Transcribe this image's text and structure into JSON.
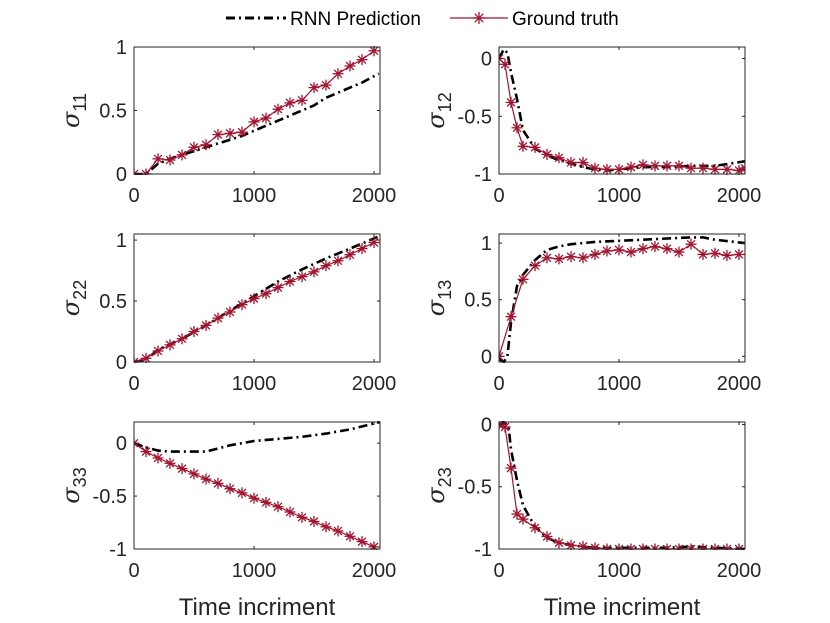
{
  "colors": {
    "rnn": "#000000",
    "truth": "#a2142f",
    "axis": "#262626"
  },
  "legend": {
    "rnn_label": "RNN Prediction",
    "truth_label": "Ground truth"
  },
  "chart_data": [
    {
      "type": "line",
      "panel": "sigma_11",
      "ylabel_symbol": "σ",
      "ylabel_sub": "11",
      "xlabel": "",
      "xlim": [
        0,
        2050
      ],
      "ylim": [
        0,
        1
      ],
      "xticks": [
        0,
        1000,
        2000
      ],
      "xtick_labels": [
        "0",
        "1000",
        "2000"
      ],
      "yticks": [
        0,
        0.5,
        1
      ],
      "ytick_labels": [
        "0",
        "0.5",
        "1"
      ],
      "series": [
        {
          "name": "RNN Prediction",
          "style": "dashdot",
          "x": [
            0,
            100,
            200,
            300,
            400,
            500,
            600,
            700,
            800,
            900,
            1000,
            1100,
            1200,
            1300,
            1400,
            1500,
            1600,
            1700,
            1800,
            1900,
            2000,
            2040
          ],
          "y": [
            0.0,
            0.0,
            0.08,
            0.12,
            0.15,
            0.18,
            0.21,
            0.24,
            0.27,
            0.3,
            0.34,
            0.38,
            0.42,
            0.46,
            0.5,
            0.54,
            0.6,
            0.64,
            0.68,
            0.72,
            0.77,
            0.79
          ]
        },
        {
          "name": "Ground truth",
          "style": "solid-star",
          "x": [
            0,
            100,
            200,
            300,
            400,
            500,
            600,
            700,
            800,
            900,
            1000,
            1100,
            1200,
            1300,
            1400,
            1500,
            1600,
            1700,
            1800,
            1900,
            2000
          ],
          "y": [
            0.0,
            0.0,
            0.12,
            0.11,
            0.15,
            0.21,
            0.23,
            0.31,
            0.32,
            0.33,
            0.41,
            0.44,
            0.51,
            0.56,
            0.58,
            0.68,
            0.7,
            0.79,
            0.85,
            0.9,
            0.97
          ]
        }
      ]
    },
    {
      "type": "line",
      "panel": "sigma_12",
      "ylabel_symbol": "σ",
      "ylabel_sub": "12",
      "xlabel": "",
      "xlim": [
        0,
        2050
      ],
      "ylim": [
        -1,
        0.1
      ],
      "xticks": [
        0,
        1000,
        2000
      ],
      "xtick_labels": [
        "0",
        "1000",
        "2000"
      ],
      "yticks": [
        -1,
        -0.5,
        0
      ],
      "ytick_labels": [
        "-1",
        "-0.5",
        "0"
      ],
      "series": [
        {
          "name": "RNN Prediction",
          "style": "dashdot",
          "x": [
            0,
            40,
            70,
            100,
            150,
            200,
            300,
            400,
            500,
            600,
            700,
            800,
            900,
            1000,
            1200,
            1400,
            1600,
            1800,
            2050
          ],
          "y": [
            0.0,
            0.08,
            0.05,
            -0.12,
            -0.35,
            -0.62,
            -0.78,
            -0.84,
            -0.88,
            -0.91,
            -0.94,
            -0.96,
            -0.97,
            -0.96,
            -0.94,
            -0.94,
            -0.93,
            -0.93,
            -0.89
          ]
        },
        {
          "name": "Ground truth",
          "style": "solid-star",
          "x": [
            0,
            50,
            100,
            150,
            200,
            300,
            400,
            500,
            600,
            700,
            800,
            900,
            1000,
            1100,
            1200,
            1300,
            1400,
            1500,
            1600,
            1700,
            1800,
            1900,
            2000,
            2050
          ],
          "y": [
            0.0,
            -0.05,
            -0.38,
            -0.6,
            -0.76,
            -0.77,
            -0.83,
            -0.86,
            -0.9,
            -0.9,
            -0.95,
            -0.96,
            -0.96,
            -0.94,
            -0.92,
            -0.93,
            -0.93,
            -0.93,
            -0.95,
            -0.95,
            -0.96,
            -0.96,
            -0.97,
            -0.95
          ]
        }
      ]
    },
    {
      "type": "line",
      "panel": "sigma_22",
      "ylabel_symbol": "σ",
      "ylabel_sub": "22",
      "xlabel": "",
      "xlim": [
        0,
        2050
      ],
      "ylim": [
        0,
        1.05
      ],
      "xticks": [
        0,
        1000,
        2000
      ],
      "xtick_labels": [
        "0",
        "1000",
        "2000"
      ],
      "yticks": [
        0,
        0.5,
        1
      ],
      "ytick_labels": [
        "0",
        "0.5",
        "1"
      ],
      "series": [
        {
          "name": "RNN Prediction",
          "style": "dashdot",
          "x": [
            0,
            100,
            200,
            400,
            600,
            800,
            1000,
            1200,
            1400,
            1600,
            1800,
            2040
          ],
          "y": [
            0.0,
            0.02,
            0.1,
            0.19,
            0.3,
            0.42,
            0.54,
            0.66,
            0.76,
            0.85,
            0.93,
            1.03
          ]
        },
        {
          "name": "Ground truth",
          "style": "solid-star",
          "x": [
            0,
            100,
            200,
            300,
            400,
            500,
            600,
            700,
            800,
            900,
            1000,
            1100,
            1200,
            1300,
            1400,
            1500,
            1600,
            1700,
            1800,
            1900,
            2000
          ],
          "y": [
            0.0,
            0.03,
            0.09,
            0.14,
            0.19,
            0.25,
            0.3,
            0.36,
            0.41,
            0.47,
            0.52,
            0.56,
            0.61,
            0.66,
            0.7,
            0.74,
            0.79,
            0.83,
            0.88,
            0.93,
            0.98
          ]
        }
      ]
    },
    {
      "type": "line",
      "panel": "sigma_13",
      "ylabel_symbol": "σ",
      "ylabel_sub": "13",
      "xlabel": "",
      "xlim": [
        0,
        2050
      ],
      "ylim": [
        -0.05,
        1.08
      ],
      "xticks": [
        0,
        1000,
        2000
      ],
      "xtick_labels": [
        "0",
        "1000",
        "2000"
      ],
      "yticks": [
        0,
        0.5,
        1
      ],
      "ytick_labels": [
        "0",
        "0.5",
        "1"
      ],
      "series": [
        {
          "name": "RNN Prediction",
          "style": "dashdot",
          "x": [
            0,
            40,
            70,
            100,
            150,
            200,
            300,
            400,
            500,
            600,
            800,
            1000,
            1200,
            1400,
            1600,
            1700,
            1800,
            2050
          ],
          "y": [
            -0.02,
            -0.05,
            0.0,
            0.3,
            0.62,
            0.72,
            0.85,
            0.94,
            0.97,
            0.99,
            1.01,
            1.02,
            1.03,
            1.04,
            1.05,
            1.05,
            1.03,
            1.0
          ]
        },
        {
          "name": "Ground truth",
          "style": "solid-star",
          "x": [
            0,
            100,
            200,
            300,
            400,
            500,
            600,
            700,
            800,
            900,
            1000,
            1100,
            1200,
            1300,
            1400,
            1500,
            1600,
            1700,
            1800,
            1900,
            2000
          ],
          "y": [
            0.0,
            0.35,
            0.68,
            0.8,
            0.87,
            0.86,
            0.88,
            0.87,
            0.9,
            0.93,
            0.94,
            0.92,
            0.95,
            0.97,
            0.95,
            0.92,
            0.99,
            0.9,
            0.91,
            0.89,
            0.9
          ]
        }
      ]
    },
    {
      "type": "line",
      "panel": "sigma_33",
      "ylabel_symbol": "σ",
      "ylabel_sub": "33",
      "xlabel": "Time incriment",
      "xlim": [
        0,
        2050
      ],
      "ylim": [
        -1,
        0.2
      ],
      "xticks": [
        0,
        1000,
        2000
      ],
      "xtick_labels": [
        "0",
        "1000",
        "2000"
      ],
      "yticks": [
        -1,
        -0.5,
        0
      ],
      "ytick_labels": [
        "-1",
        "-0.5",
        "0"
      ],
      "series": [
        {
          "name": "RNN Prediction",
          "style": "dashdot",
          "x": [
            0,
            100,
            200,
            300,
            400,
            500,
            600,
            700,
            800,
            900,
            1000,
            1200,
            1400,
            1600,
            1800,
            2050
          ],
          "y": [
            0.0,
            -0.04,
            -0.07,
            -0.08,
            -0.08,
            -0.08,
            -0.08,
            -0.05,
            -0.02,
            0.0,
            0.02,
            0.04,
            0.06,
            0.09,
            0.13,
            0.2
          ]
        },
        {
          "name": "Ground truth",
          "style": "solid-star",
          "x": [
            0,
            100,
            200,
            300,
            400,
            500,
            600,
            700,
            800,
            900,
            1000,
            1100,
            1200,
            1300,
            1400,
            1500,
            1600,
            1700,
            1800,
            1900,
            2000
          ],
          "y": [
            0.0,
            -0.08,
            -0.14,
            -0.19,
            -0.24,
            -0.29,
            -0.34,
            -0.38,
            -0.43,
            -0.47,
            -0.52,
            -0.56,
            -0.6,
            -0.65,
            -0.7,
            -0.74,
            -0.79,
            -0.83,
            -0.88,
            -0.93,
            -0.98
          ]
        }
      ]
    },
    {
      "type": "line",
      "panel": "sigma_23",
      "ylabel_symbol": "σ",
      "ylabel_sub": "23",
      "xlabel": "Time incriment",
      "xlim": [
        0,
        2050
      ],
      "ylim": [
        -1,
        0.02
      ],
      "xticks": [
        0,
        1000,
        2000
      ],
      "xtick_labels": [
        "0",
        "1000",
        "2000"
      ],
      "yticks": [
        -1,
        -0.5,
        0
      ],
      "ytick_labels": [
        "-1",
        "-0.5",
        "0"
      ],
      "series": [
        {
          "name": "RNN Prediction",
          "style": "dashdot",
          "x": [
            0,
            40,
            80,
            100,
            150,
            200,
            300,
            400,
            500,
            600,
            800,
            1000,
            1200,
            1400,
            1600,
            1800,
            2050
          ],
          "y": [
            0.0,
            0.02,
            -0.02,
            -0.2,
            -0.45,
            -0.65,
            -0.82,
            -0.91,
            -0.95,
            -0.97,
            -0.99,
            -0.99,
            -0.99,
            -0.99,
            -0.98,
            -0.99,
            -1.0
          ]
        },
        {
          "name": "Ground truth",
          "style": "solid-star",
          "x": [
            0,
            50,
            100,
            150,
            200,
            300,
            400,
            500,
            600,
            700,
            800,
            900,
            1000,
            1100,
            1200,
            1300,
            1400,
            1500,
            1600,
            1700,
            1800,
            1900,
            2000
          ],
          "y": [
            0.0,
            -0.02,
            -0.35,
            -0.72,
            -0.76,
            -0.83,
            -0.9,
            -0.95,
            -0.97,
            -0.98,
            -0.99,
            -1.0,
            -1.0,
            -1.0,
            -1.0,
            -1.0,
            -1.0,
            -1.0,
            -1.0,
            -1.0,
            -1.0,
            -1.0,
            -1.0
          ]
        }
      ]
    }
  ]
}
